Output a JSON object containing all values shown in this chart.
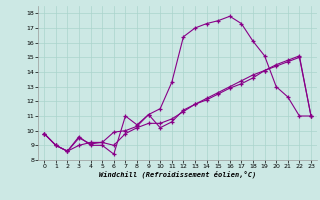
{
  "xlabel": "Windchill (Refroidissement éolien,°C)",
  "bg_color": "#cce8e4",
  "grid_color": "#aad4cc",
  "line_color": "#880088",
  "xlim": [
    0,
    23
  ],
  "ylim": [
    8,
    18
  ],
  "xticks": [
    0,
    1,
    2,
    3,
    4,
    5,
    6,
    7,
    8,
    9,
    10,
    11,
    12,
    13,
    14,
    15,
    16,
    17,
    18,
    19,
    20,
    21,
    22,
    23
  ],
  "yticks": [
    8,
    9,
    10,
    11,
    12,
    13,
    14,
    15,
    16,
    17,
    18
  ],
  "line1_x": [
    0,
    1,
    2,
    3,
    4,
    5,
    6,
    7,
    8,
    9,
    10,
    11,
    12,
    13,
    14,
    15,
    16,
    17,
    18,
    19,
    20,
    21,
    22,
    23
  ],
  "line1_y": [
    9.8,
    9.0,
    8.6,
    9.6,
    9.0,
    9.0,
    8.4,
    11.0,
    10.4,
    11.1,
    11.5,
    13.3,
    16.4,
    17.0,
    17.3,
    17.5,
    17.8,
    17.3,
    16.1,
    15.1,
    13.0,
    12.3,
    11.0,
    11.0
  ],
  "line2_x": [
    0,
    1,
    2,
    3,
    4,
    5,
    6,
    7,
    8,
    9,
    10,
    11,
    12,
    13,
    14,
    15,
    16,
    17,
    18,
    19,
    20,
    21,
    22,
    23
  ],
  "line2_y": [
    9.8,
    9.0,
    8.6,
    9.0,
    9.2,
    9.2,
    9.0,
    9.8,
    10.2,
    10.5,
    10.5,
    10.8,
    11.3,
    11.8,
    12.2,
    12.6,
    13.0,
    13.4,
    13.8,
    14.1,
    14.4,
    14.7,
    15.0,
    11.0
  ],
  "line3_x": [
    0,
    1,
    2,
    3,
    4,
    5,
    6,
    7,
    8,
    9,
    10,
    11,
    12,
    13,
    14,
    15,
    16,
    17,
    18,
    19,
    20,
    21,
    22,
    23
  ],
  "line3_y": [
    9.8,
    9.0,
    8.6,
    9.5,
    9.1,
    9.2,
    9.9,
    10.0,
    10.3,
    11.1,
    10.2,
    10.6,
    11.4,
    11.8,
    12.1,
    12.5,
    12.9,
    13.2,
    13.6,
    14.1,
    14.5,
    14.8,
    15.1,
    11.0
  ]
}
